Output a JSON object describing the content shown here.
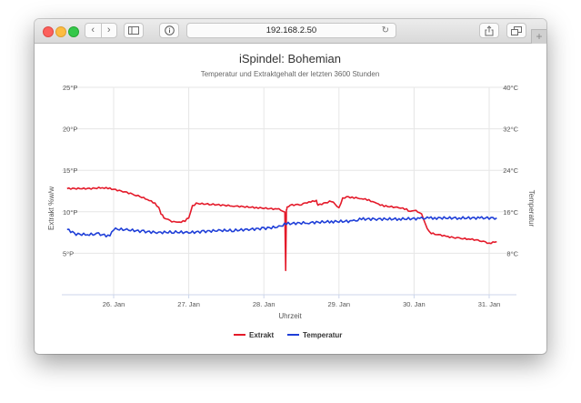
{
  "browser": {
    "url": "192.168.2.50"
  },
  "chart_data": {
    "type": "line",
    "title": "iSpindel: Bohemian",
    "subtitle": "Temperatur und Extraktgehalt der letzten 3600 Stunden",
    "xlabel": "Uhrzeit",
    "ylabel_left": "Extrakt %w/w",
    "ylabel_right": "Temperatur",
    "x_ticks": [
      "26. Jan",
      "27. Jan",
      "28. Jan",
      "29. Jan",
      "30. Jan",
      "31. Jan"
    ],
    "x_range": [
      -0.62,
      5.1
    ],
    "y_left_ticks": [
      "5°P",
      "10°P",
      "15°P",
      "20°P",
      "25°P"
    ],
    "y_left_range": [
      0,
      25
    ],
    "y_right_ticks": [
      "8°C",
      "16°C",
      "24°C",
      "32°C",
      "40°C"
    ],
    "y_right_range": [
      0,
      40
    ],
    "legend_position": "bottom",
    "series": [
      {
        "name": "Extrakt",
        "color": "#e41a2a",
        "axis": "left",
        "x": [
          -0.62,
          -0.3,
          -0.15,
          -0.05,
          0.15,
          0.3,
          0.45,
          0.55,
          0.6,
          0.63,
          0.67,
          0.75,
          0.85,
          0.95,
          1.0,
          1.05,
          1.1,
          1.3,
          1.6,
          1.9,
          2.2,
          2.28,
          2.29,
          2.3,
          2.31,
          2.35,
          2.5,
          2.6,
          2.7,
          2.72,
          2.9,
          3.0,
          3.05,
          3.1,
          3.2,
          3.3,
          3.4,
          3.5,
          3.6,
          3.8,
          3.9,
          3.95,
          4.0,
          4.1,
          4.15,
          4.2,
          4.23,
          4.3,
          4.45,
          4.6,
          4.75,
          4.9,
          5.0,
          5.1
        ],
        "values": [
          12.8,
          12.8,
          12.9,
          12.8,
          12.4,
          12.0,
          11.5,
          11.0,
          10.5,
          9.8,
          9.3,
          8.9,
          8.7,
          8.9,
          9.3,
          10.7,
          11.0,
          10.9,
          10.7,
          10.5,
          10.3,
          10.0,
          3.0,
          10.2,
          10.5,
          10.8,
          10.9,
          11.2,
          11.3,
          10.8,
          11.3,
          10.5,
          11.6,
          11.8,
          11.7,
          11.6,
          11.4,
          11.0,
          10.7,
          10.5,
          10.3,
          10.0,
          10.2,
          9.8,
          8.5,
          7.6,
          7.4,
          7.3,
          7.0,
          6.8,
          6.7,
          6.5,
          6.2,
          6.4
        ]
      },
      {
        "name": "Temperatur",
        "color": "#1f3fd8",
        "axis": "right",
        "x": [
          -0.62,
          -0.5,
          -0.35,
          -0.2,
          -0.05,
          0.0,
          0.2,
          0.4,
          0.6,
          0.8,
          1.0,
          1.2,
          1.4,
          1.6,
          1.8,
          2.0,
          2.2,
          2.3,
          2.6,
          2.9,
          3.2,
          3.3,
          3.5,
          3.8,
          4.1,
          4.2,
          4.3,
          4.6,
          4.9,
          5.1
        ],
        "values": [
          12.6,
          11.7,
          11.6,
          11.7,
          11.3,
          12.7,
          12.5,
          12.2,
          12.0,
          12.1,
          12.0,
          12.2,
          12.4,
          12.4,
          12.6,
          12.8,
          13.1,
          13.7,
          13.9,
          14.1,
          14.2,
          14.6,
          14.6,
          14.6,
          14.7,
          14.8,
          14.8,
          14.8,
          14.8,
          14.8
        ]
      }
    ]
  }
}
